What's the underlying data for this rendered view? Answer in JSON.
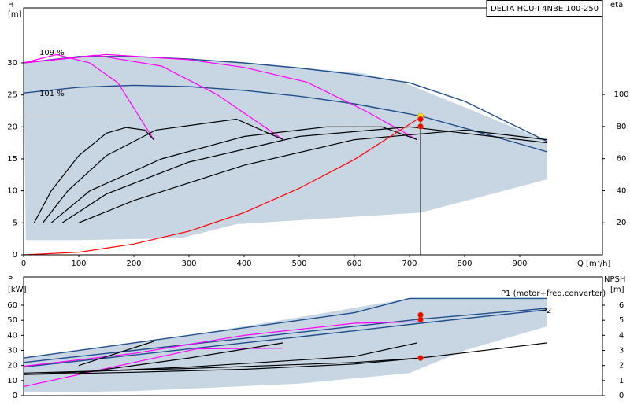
{
  "chart_data": [
    {
      "type": "line",
      "title": "DELTA HCU-I 4NBE 100-250",
      "x_label": "Q [m³/h]",
      "y_label": "H",
      "y_unit": "[m]",
      "y2_label": "eta",
      "xlim": [
        0,
        1050
      ],
      "xticks": [
        0,
        100,
        200,
        300,
        400,
        500,
        600,
        700,
        800,
        900
      ],
      "ylim": [
        0,
        38.6
      ],
      "yticks": [
        0,
        5,
        10,
        15,
        20,
        25,
        30
      ],
      "y2lim": [
        0,
        154
      ],
      "y2ticks": [
        20,
        40,
        60,
        80,
        100
      ],
      "annotations": [
        "109 %",
        "101 %"
      ],
      "series": [
        {
          "fill": true,
          "color": "#c8d6e4",
          "x": [
            0,
            100,
            200,
            300,
            450,
            614,
            693,
            814,
            950,
            950,
            721,
            386,
            286,
            100,
            4,
            0
          ],
          "values": [
            30,
            31,
            31,
            30.6,
            29.6,
            28.4,
            26.8,
            22.6,
            17.7,
            11.8,
            6.6,
            4.8,
            2.6,
            2.3,
            2.3,
            30
          ]
        },
        {
          "color": "#1f4e8c",
          "x": [
            0,
            100,
            200,
            300,
            400,
            500,
            600,
            700,
            800,
            950
          ],
          "values": [
            30,
            31,
            31,
            30.6,
            30,
            29.2,
            28.2,
            26.9,
            24,
            17.7
          ]
        },
        {
          "color": "#1f4e8c",
          "x": [
            0,
            100,
            200,
            300,
            400,
            500,
            600,
            720,
            800,
            950
          ],
          "values": [
            25.3,
            26.2,
            26.5,
            26.3,
            25.7,
            24.8,
            23.6,
            21.7,
            19.8,
            16.1
          ]
        },
        {
          "color": "#ff00ff",
          "x": [
            0,
            60,
            120,
            171,
            236
          ],
          "values": [
            30,
            31.3,
            30,
            26.9,
            18
          ]
        },
        {
          "color": "#ff00ff",
          "x": [
            0,
            130,
            250,
            350,
            471
          ],
          "values": [
            30,
            31.2,
            29.5,
            25.1,
            18
          ]
        },
        {
          "color": "#ff00ff",
          "x": [
            0,
            150,
            300,
            400,
            514,
            620,
            714
          ],
          "values": [
            30,
            31.3,
            30.5,
            29.3,
            27,
            22.5,
            18
          ]
        },
        {
          "color": "#000000",
          "x": [
            19,
            50,
            100,
            150,
            186,
            220,
            236
          ],
          "values": [
            5,
            10,
            15.5,
            19,
            19.9,
            19.5,
            18
          ]
        },
        {
          "color": "#000000",
          "x": [
            35,
            80,
            150,
            240,
            386,
            471
          ],
          "values": [
            5,
            10,
            15.5,
            19.5,
            21.2,
            18
          ]
        },
        {
          "color": "#000000",
          "x": [
            50,
            120,
            250,
            400,
            550,
            650,
            714
          ],
          "values": [
            5,
            10,
            15,
            18.5,
            20,
            20,
            18
          ]
        },
        {
          "color": "#000000",
          "x": [
            70,
            150,
            300,
            500,
            700,
            950
          ],
          "values": [
            5,
            9.5,
            14.5,
            18.5,
            20,
            17.5
          ]
        },
        {
          "color": "#000000",
          "x": [
            100,
            200,
            400,
            600,
            800,
            950
          ],
          "values": [
            5,
            8.5,
            14,
            18,
            19.5,
            18
          ]
        },
        {
          "color": "#ff0000",
          "x": [
            0,
            100,
            200,
            300,
            400,
            500,
            600,
            720
          ],
          "values": [
            0,
            0.4,
            1.7,
            3.7,
            6.6,
            10.4,
            14.9,
            21.5
          ]
        }
      ],
      "operating_point": {
        "x": 720,
        "y": 21.7
      },
      "markers": [
        {
          "x": 720,
          "value": 21.7,
          "color": "#ffdd00"
        },
        {
          "x": 720,
          "value": 21.2,
          "color": "#ff0000"
        },
        {
          "x": 720,
          "value": 80,
          "color": "#ff0000",
          "axis": "y2"
        }
      ]
    },
    {
      "type": "line",
      "y_label": "P",
      "y_unit": "[kW]",
      "y2_label": "NPSH",
      "y2_unit": "[m]",
      "xlim": [
        0,
        1050
      ],
      "ylim": [
        0,
        78.8
      ],
      "yticks": [
        0,
        10,
        20,
        30,
        40,
        50,
        60
      ],
      "y2lim": [
        0,
        7.88
      ],
      "y2ticks": [
        0,
        1,
        2,
        3,
        4,
        5,
        6
      ],
      "annotations": [
        "P1 (motor+freq.converter)",
        "P2"
      ],
      "series": [
        {
          "fill": true,
          "color": "#c8d6e4",
          "x": [
            0,
            300,
            500,
            700,
            950,
            950,
            800,
            700,
            500,
            200,
            0,
            0
          ],
          "values": [
            25,
            40,
            52,
            64.5,
            64.5,
            46,
            30,
            15,
            8,
            3,
            2,
            25
          ]
        },
        {
          "color": "#1f4e8c",
          "x": [
            0,
            200,
            400,
            600,
            700,
            950
          ],
          "values": [
            25,
            35,
            45,
            55,
            64.5,
            64.5
          ]
        },
        {
          "color": "#1f4e8c",
          "x": [
            0,
            200,
            400,
            600,
            720,
            950
          ],
          "values": [
            22,
            30,
            38,
            46,
            50.8,
            58
          ]
        },
        {
          "color": "#1f4e8c",
          "x": [
            0,
            200,
            400,
            600,
            720,
            950
          ],
          "values": [
            19,
            27,
            35,
            43,
            48,
            57
          ]
        },
        {
          "color": "#ff00ff",
          "x": [
            0,
            200,
            400,
            600,
            720
          ],
          "values": [
            19.5,
            28,
            40,
            48,
            49
          ]
        },
        {
          "color": "#ff00ff",
          "x": [
            0,
            100,
            200,
            314,
            471
          ],
          "values": [
            6,
            14,
            22,
            31,
            31.5
          ]
        },
        {
          "color": "#000000",
          "x": [
            100,
            236
          ],
          "values": [
            20,
            36
          ]
        },
        {
          "color": "#000000",
          "x": [
            100,
            300,
            471
          ],
          "values": [
            15,
            25,
            35
          ]
        },
        {
          "color": "#000000",
          "x": [
            0,
            300,
            600,
            714
          ],
          "values": [
            14,
            19,
            26,
            35
          ]
        },
        {
          "color": "#000000",
          "x": [
            0,
            200,
            400,
            600,
            720
          ],
          "values": [
            14,
            15.5,
            17.5,
            21,
            25
          ]
        },
        {
          "color": "#000000",
          "axis": "y2",
          "x": [
            0,
            300,
            600,
            720,
            950
          ],
          "values": [
            1.5,
            1.8,
            2.2,
            2.5,
            3.5
          ]
        }
      ],
      "markers": [
        {
          "x": 720,
          "value": 53.5,
          "color": "#ff0000"
        },
        {
          "x": 720,
          "value": 50.5,
          "color": "#ff0000"
        },
        {
          "x": 720,
          "value": 2.5,
          "color": "#ff0000",
          "axis": "y2"
        }
      ]
    }
  ]
}
